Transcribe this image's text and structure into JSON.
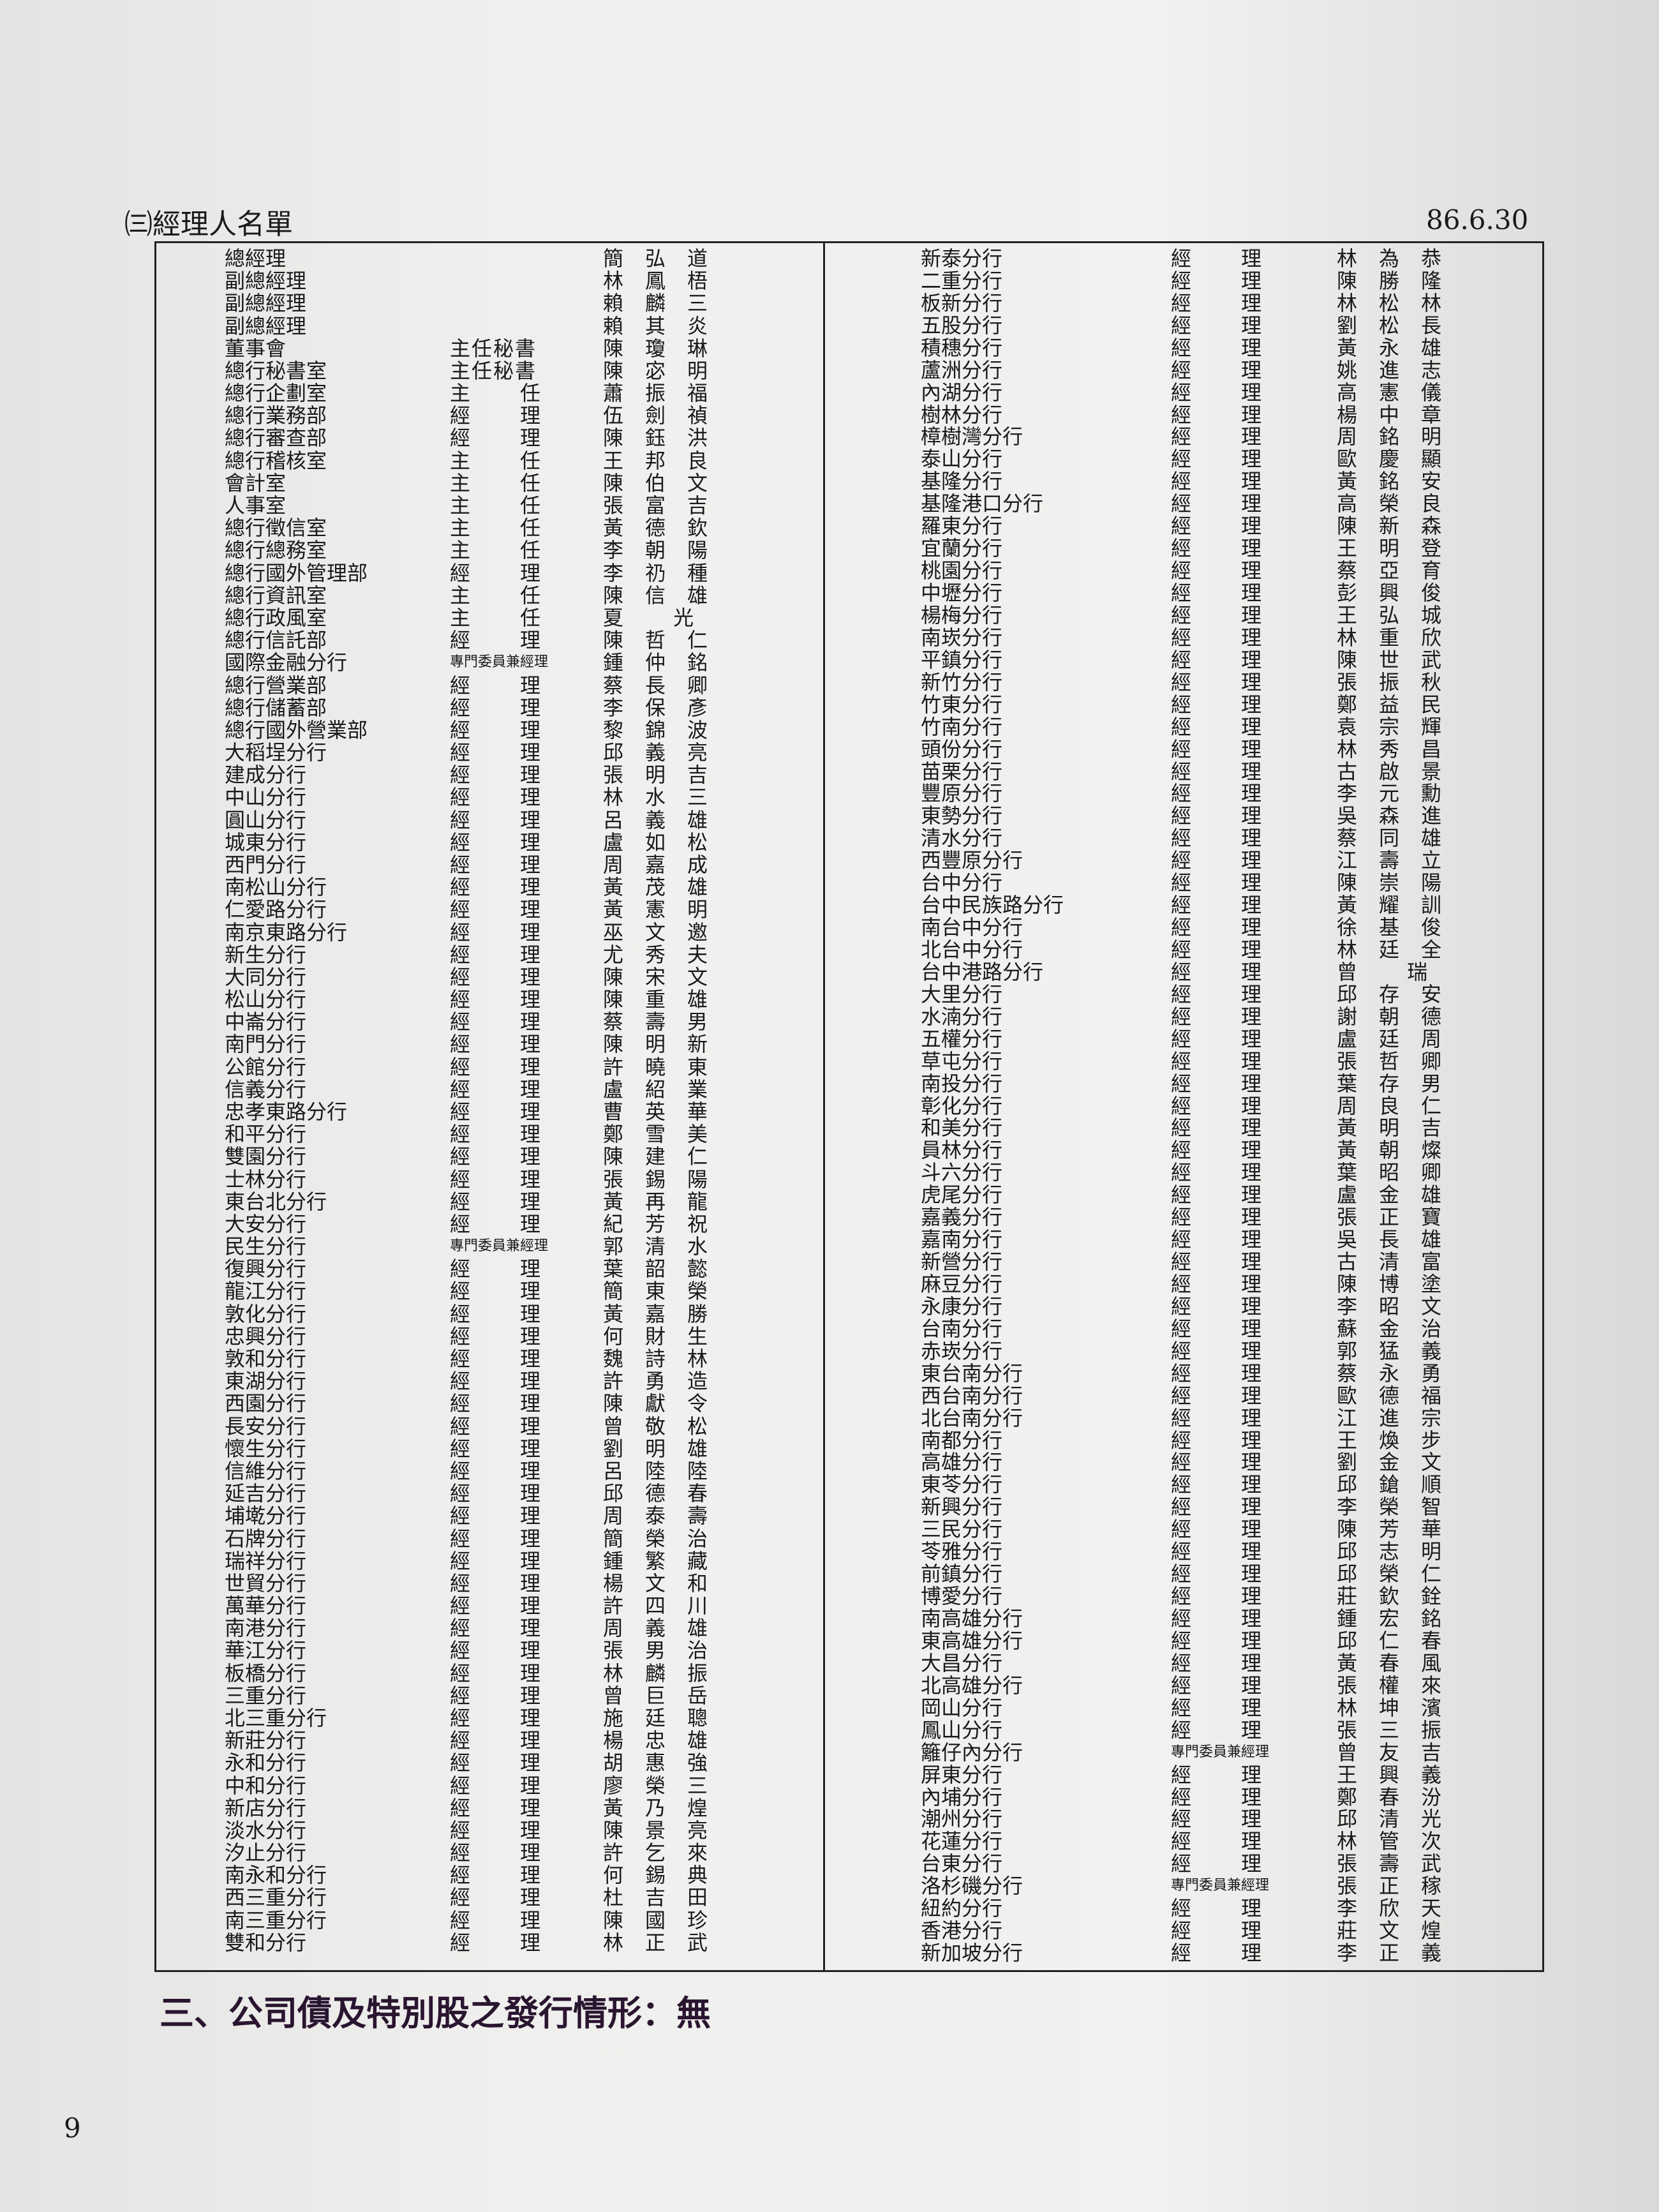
{
  "header": {
    "title": "㈢經理人名單",
    "date": "86.6.30"
  },
  "table": {
    "left_rows": [
      {
        "unit": "總經理",
        "name": "簡弘道"
      },
      {
        "unit": "副總經理",
        "name": "林鳳梧"
      },
      {
        "unit": "副總經理",
        "name": "賴麟三"
      },
      {
        "unit": "副總經理",
        "name": "賴其炎"
      },
      {
        "unit": "董事會",
        "title": "主任秘書",
        "name": "陳瓊琳"
      },
      {
        "unit": "總行秘書室",
        "title": "主任秘書",
        "name": "陳宓明"
      },
      {
        "unit": "總行企劃室",
        "title": "主任",
        "name": "蕭振福"
      },
      {
        "unit": "總行業務部",
        "title": "經理",
        "name": "伍劍禎"
      },
      {
        "unit": "總行審查部",
        "title": "經理",
        "name": "陳鈺洪"
      },
      {
        "unit": "總行稽核室",
        "title": "主任",
        "name": "王邦良"
      },
      {
        "unit": "會計室",
        "title": "主任",
        "name": "陳伯文"
      },
      {
        "unit": "人事室",
        "title": "主任",
        "name": "張富吉"
      },
      {
        "unit": "總行徵信室",
        "title": "主任",
        "name": "黃德欽"
      },
      {
        "unit": "總行總務室",
        "title": "主任",
        "name": "李朝陽"
      },
      {
        "unit": "總行國外管理部",
        "title": "經理",
        "name": "李礽種"
      },
      {
        "unit": "總行資訊室",
        "title": "主任",
        "name": "陳信雄"
      },
      {
        "unit": "總行政風室",
        "title": "主任",
        "name": "夏 光"
      },
      {
        "unit": "總行信託部",
        "title": "經理",
        "name": "陳哲仁"
      },
      {
        "unit": "國際金融分行",
        "title": "專門委員兼經理",
        "name": "鍾仲銘"
      },
      {
        "unit": "總行營業部",
        "title": "經理",
        "name": "蔡長卿"
      },
      {
        "unit": "總行儲蓄部",
        "title": "經理",
        "name": "李保彥"
      },
      {
        "unit": "總行國外營業部",
        "title": "經理",
        "name": "黎錦波"
      },
      {
        "unit": "大稻埕分行",
        "title": "經理",
        "name": "邱義亮"
      },
      {
        "unit": "建成分行",
        "title": "經理",
        "name": "張明吉"
      },
      {
        "unit": "中山分行",
        "title": "經理",
        "name": "林水三"
      },
      {
        "unit": "圓山分行",
        "title": "經理",
        "name": "呂義雄"
      },
      {
        "unit": "城東分行",
        "title": "經理",
        "name": "盧如松"
      },
      {
        "unit": "西門分行",
        "title": "經理",
        "name": "周嘉成"
      },
      {
        "unit": "南松山分行",
        "title": "經理",
        "name": "黃茂雄"
      },
      {
        "unit": "仁愛路分行",
        "title": "經理",
        "name": "黃憲明"
      },
      {
        "unit": "南京東路分行",
        "title": "經理",
        "name": "巫文邀"
      },
      {
        "unit": "新生分行",
        "title": "經理",
        "name": "尤秀夫"
      },
      {
        "unit": "大同分行",
        "title": "經理",
        "name": "陳宋文"
      },
      {
        "unit": "松山分行",
        "title": "經理",
        "name": "陳重雄"
      },
      {
        "unit": "中崙分行",
        "title": "經理",
        "name": "蔡壽男"
      },
      {
        "unit": "南門分行",
        "title": "經理",
        "name": "陳明新"
      },
      {
        "unit": "公館分行",
        "title": "經理",
        "name": "許曉東"
      },
      {
        "unit": "信義分行",
        "title": "經理",
        "name": "盧紹業"
      },
      {
        "unit": "忠孝東路分行",
        "title": "經理",
        "name": "曹英華"
      },
      {
        "unit": "和平分行",
        "title": "經理",
        "name": "鄭雪美"
      },
      {
        "unit": "雙園分行",
        "title": "經理",
        "name": "陳建仁"
      },
      {
        "unit": "士林分行",
        "title": "經理",
        "name": "張錫陽"
      },
      {
        "unit": "東台北分行",
        "title": "經理",
        "name": "黃再龍"
      },
      {
        "unit": "大安分行",
        "title": "經理",
        "name": "紀芳祝"
      },
      {
        "unit": "民生分行",
        "title": "專門委員兼經理",
        "name": "郭清水"
      },
      {
        "unit": "復興分行",
        "title": "經理",
        "name": "葉韶懿"
      },
      {
        "unit": "龍江分行",
        "title": "經理",
        "name": "簡東榮"
      },
      {
        "unit": "敦化分行",
        "title": "經理",
        "name": "黃嘉勝"
      },
      {
        "unit": "忠興分行",
        "title": "經理",
        "name": "何財生"
      },
      {
        "unit": "敦和分行",
        "title": "經理",
        "name": "魏詩林"
      },
      {
        "unit": "東湖分行",
        "title": "經理",
        "name": "許勇造"
      },
      {
        "unit": "西園分行",
        "title": "經理",
        "name": "陳獻令"
      },
      {
        "unit": "長安分行",
        "title": "經理",
        "name": "曾敬松"
      },
      {
        "unit": "懷生分行",
        "title": "經理",
        "name": "劉明雄"
      },
      {
        "unit": "信維分行",
        "title": "經理",
        "name": "呂陸陸"
      },
      {
        "unit": "延吉分行",
        "title": "經理",
        "name": "邱德春"
      },
      {
        "unit": "埔墘分行",
        "title": "經理",
        "name": "周泰壽"
      },
      {
        "unit": "石牌分行",
        "title": "經理",
        "name": "簡榮治"
      },
      {
        "unit": "瑞祥分行",
        "title": "經理",
        "name": "鍾繁藏"
      },
      {
        "unit": "世貿分行",
        "title": "經理",
        "name": "楊文和"
      },
      {
        "unit": "萬華分行",
        "title": "經理",
        "name": "許四川"
      },
      {
        "unit": "南港分行",
        "title": "經理",
        "name": "周義雄"
      },
      {
        "unit": "華江分行",
        "title": "經理",
        "name": "張男治"
      },
      {
        "unit": "板橋分行",
        "title": "經理",
        "name": "林麟振"
      },
      {
        "unit": "三重分行",
        "title": "經理",
        "name": "曾巨岳"
      },
      {
        "unit": "北三重分行",
        "title": "經理",
        "name": "施廷聰"
      },
      {
        "unit": "新莊分行",
        "title": "經理",
        "name": "楊忠雄"
      },
      {
        "unit": "永和分行",
        "title": "經理",
        "name": "胡惠強"
      },
      {
        "unit": "中和分行",
        "title": "經理",
        "name": "廖榮三"
      },
      {
        "unit": "新店分行",
        "title": "經理",
        "name": "黃乃煌"
      },
      {
        "unit": "淡水分行",
        "title": "經理",
        "name": "陳景亮"
      },
      {
        "unit": "汐止分行",
        "title": "經理",
        "name": "許乞來"
      },
      {
        "unit": "南永和分行",
        "title": "經理",
        "name": "何錫典"
      },
      {
        "unit": "西三重分行",
        "title": "經理",
        "name": "杜吉田"
      },
      {
        "unit": "南三重分行",
        "title": "經理",
        "name": "陳國珍"
      },
      {
        "unit": "雙和分行",
        "title": "經理",
        "name": "林正武"
      }
    ],
    "right_rows": [
      {
        "unit": "新泰分行",
        "title": "經理",
        "name": "林為恭"
      },
      {
        "unit": "二重分行",
        "title": "經理",
        "name": "陳勝隆"
      },
      {
        "unit": "板新分行",
        "title": "經理",
        "name": "林松林"
      },
      {
        "unit": "五股分行",
        "title": "經理",
        "name": "劉松長"
      },
      {
        "unit": "積穗分行",
        "title": "經理",
        "name": "黃永雄"
      },
      {
        "unit": "蘆洲分行",
        "title": "經理",
        "name": "姚進志"
      },
      {
        "unit": "內湖分行",
        "title": "經理",
        "name": "高憲儀"
      },
      {
        "unit": "樹林分行",
        "title": "經理",
        "name": "楊中章"
      },
      {
        "unit": "樟樹灣分行",
        "title": "經理",
        "name": "周銘明"
      },
      {
        "unit": "泰山分行",
        "title": "經理",
        "name": "歐慶顯"
      },
      {
        "unit": "基隆分行",
        "title": "經理",
        "name": "黃銘安"
      },
      {
        "unit": "基隆港口分行",
        "title": "經理",
        "name": "高榮良"
      },
      {
        "unit": "羅東分行",
        "title": "經理",
        "name": "陳新森"
      },
      {
        "unit": "宜蘭分行",
        "title": "經理",
        "name": "王明登"
      },
      {
        "unit": "桃園分行",
        "title": "經理",
        "name": "蔡亞育"
      },
      {
        "unit": "中壢分行",
        "title": "經理",
        "name": "彭興俊"
      },
      {
        "unit": "楊梅分行",
        "title": "經理",
        "name": "王弘城"
      },
      {
        "unit": "南崁分行",
        "title": "經理",
        "name": "林重欣"
      },
      {
        "unit": "平鎮分行",
        "title": "經理",
        "name": "陳世武"
      },
      {
        "unit": "新竹分行",
        "title": "經理",
        "name": "張振秋"
      },
      {
        "unit": "竹東分行",
        "title": "經理",
        "name": "鄭益民"
      },
      {
        "unit": "竹南分行",
        "title": "經理",
        "name": "袁宗輝"
      },
      {
        "unit": "頭份分行",
        "title": "經理",
        "name": "林秀昌"
      },
      {
        "unit": "苗栗分行",
        "title": "經理",
        "name": "古啟景"
      },
      {
        "unit": "豐原分行",
        "title": "經理",
        "name": "李元勳"
      },
      {
        "unit": "東勢分行",
        "title": "經理",
        "name": "吳森進"
      },
      {
        "unit": "清水分行",
        "title": "經理",
        "name": "蔡同雄"
      },
      {
        "unit": "西豐原分行",
        "title": "經理",
        "name": "江壽立"
      },
      {
        "unit": "台中分行",
        "title": "經理",
        "name": "陳崇陽"
      },
      {
        "unit": "台中民族路分行",
        "title": "經理",
        "name": "黃耀訓"
      },
      {
        "unit": "南台中分行",
        "title": "經理",
        "name": "徐基俊"
      },
      {
        "unit": "北台中分行",
        "title": "經理",
        "name": "林廷全"
      },
      {
        "unit": "台中港路分行",
        "title": "經理",
        "name": "曾 瑞"
      },
      {
        "unit": "大里分行",
        "title": "經理",
        "name": "邱存安"
      },
      {
        "unit": "水湳分行",
        "title": "經理",
        "name": "謝朝德"
      },
      {
        "unit": "五權分行",
        "title": "經理",
        "name": "盧廷周"
      },
      {
        "unit": "草屯分行",
        "title": "經理",
        "name": "張哲卿"
      },
      {
        "unit": "南投分行",
        "title": "經理",
        "name": "葉存男"
      },
      {
        "unit": "彰化分行",
        "title": "經理",
        "name": "周良仁"
      },
      {
        "unit": "和美分行",
        "title": "經理",
        "name": "黃明吉"
      },
      {
        "unit": "員林分行",
        "title": "經理",
        "name": "黃朝燦"
      },
      {
        "unit": "斗六分行",
        "title": "經理",
        "name": "葉昭卿"
      },
      {
        "unit": "虎尾分行",
        "title": "經理",
        "name": "盧金雄"
      },
      {
        "unit": "嘉義分行",
        "title": "經理",
        "name": "張正寶"
      },
      {
        "unit": "嘉南分行",
        "title": "經理",
        "name": "吳長雄"
      },
      {
        "unit": "新營分行",
        "title": "經理",
        "name": "古清富"
      },
      {
        "unit": "麻豆分行",
        "title": "經理",
        "name": "陳博塗"
      },
      {
        "unit": "永康分行",
        "title": "經理",
        "name": "李昭文"
      },
      {
        "unit": "台南分行",
        "title": "經理",
        "name": "蘇金治"
      },
      {
        "unit": "赤崁分行",
        "title": "經理",
        "name": "郭猛義"
      },
      {
        "unit": "東台南分行",
        "title": "經理",
        "name": "蔡永勇"
      },
      {
        "unit": "西台南分行",
        "title": "經理",
        "name": "歐德福"
      },
      {
        "unit": "北台南分行",
        "title": "經理",
        "name": "江進宗"
      },
      {
        "unit": "南都分行",
        "title": "經理",
        "name": "王煥步"
      },
      {
        "unit": "高雄分行",
        "title": "經理",
        "name": "劉金文"
      },
      {
        "unit": "東苓分行",
        "title": "經理",
        "name": "邱鎗順"
      },
      {
        "unit": "新興分行",
        "title": "經理",
        "name": "李榮智"
      },
      {
        "unit": "三民分行",
        "title": "經理",
        "name": "陳芳華"
      },
      {
        "unit": "苓雅分行",
        "title": "經理",
        "name": "邱志明"
      },
      {
        "unit": "前鎮分行",
        "title": "經理",
        "name": "邱榮仁"
      },
      {
        "unit": "博愛分行",
        "title": "經理",
        "name": "莊欽銓"
      },
      {
        "unit": "南高雄分行",
        "title": "經理",
        "name": "鍾宏銘"
      },
      {
        "unit": "東高雄分行",
        "title": "經理",
        "name": "邱仁春"
      },
      {
        "unit": "大昌分行",
        "title": "經理",
        "name": "黃春風"
      },
      {
        "unit": "北高雄分行",
        "title": "經理",
        "name": "張權來"
      },
      {
        "unit": "岡山分行",
        "title": "經理",
        "name": "林坤濱"
      },
      {
        "unit": "鳳山分行",
        "title": "經理",
        "name": "張三振"
      },
      {
        "unit": "籬仔內分行",
        "title": "專門委員兼經理",
        "name": "曾友吉"
      },
      {
        "unit": "屏東分行",
        "title": "經理",
        "name": "王興義"
      },
      {
        "unit": "內埔分行",
        "title": "經理",
        "name": "鄭春汾"
      },
      {
        "unit": "潮州分行",
        "title": "經理",
        "name": "邱清光"
      },
      {
        "unit": "花蓮分行",
        "title": "經理",
        "name": "林管次"
      },
      {
        "unit": "台東分行",
        "title": "經理",
        "name": "張壽武"
      },
      {
        "unit": "洛杉磯分行",
        "title": "專門委員兼經理",
        "name": "張正稼"
      },
      {
        "unit": "紐約分行",
        "title": "經理",
        "name": "李欣天"
      },
      {
        "unit": "香港分行",
        "title": "經理",
        "name": "莊文煌"
      },
      {
        "unit": "新加坡分行",
        "title": "經理",
        "name": "李正義"
      }
    ]
  },
  "footer": {
    "heading": "三、公司債及特別股之發行情形：無",
    "page_number": "9"
  }
}
